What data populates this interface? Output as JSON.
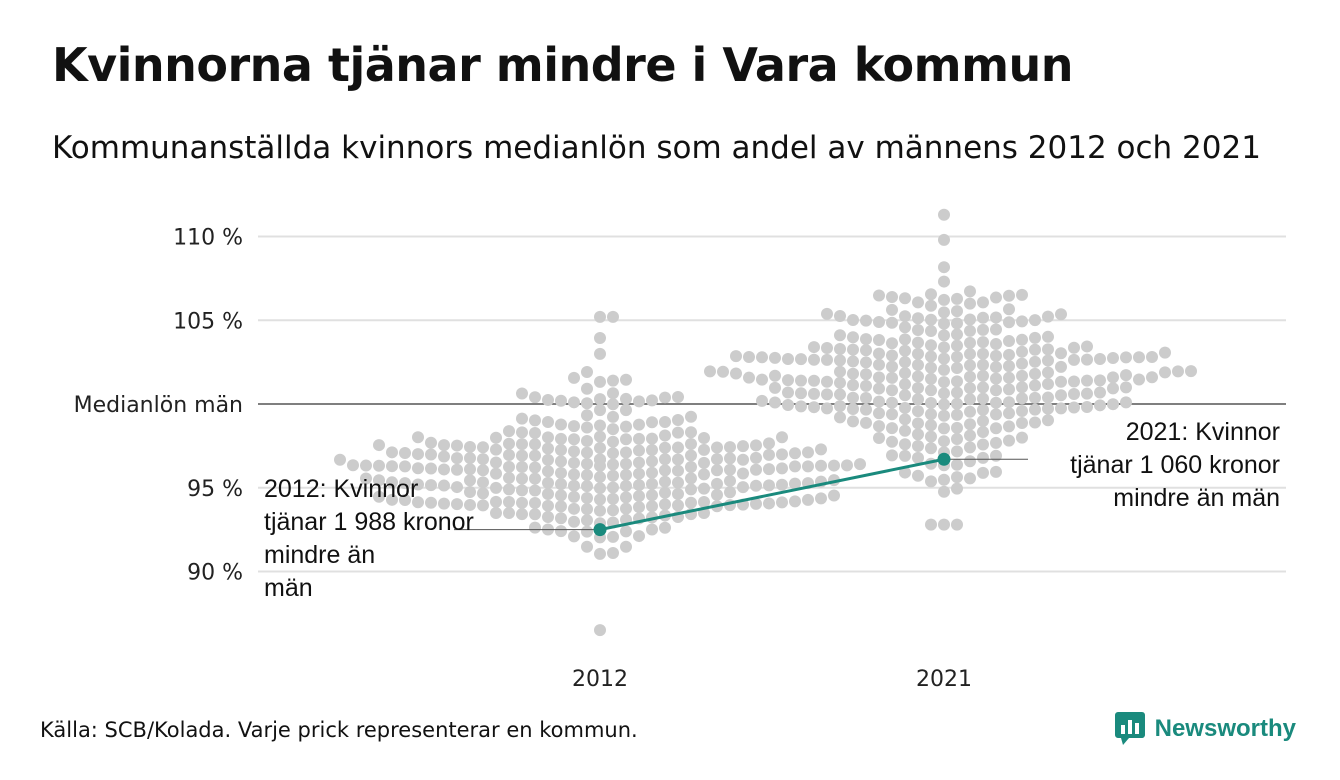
{
  "header": {
    "title": "Kvinnorna tjänar mindre i Vara kommun",
    "subtitle": "Kommunanställda kvinnors medianlön som andel av männens 2012 och 2021"
  },
  "footer": {
    "source": "Källa: SCB/Kolada. Varje prick representerar en kommun.",
    "brand": "Newsworthy",
    "brand_icon": "newsworthy-logo-icon"
  },
  "colors": {
    "dots": "#cccccc",
    "highlight": "#1a8a7d",
    "grid": "#e0e0e0",
    "reference": "#333333"
  },
  "chart_data": {
    "type": "scatter",
    "title": "Kvinnorna tjänar mindre i Vara kommun",
    "ylim": [
      86,
      111.5
    ],
    "yticks": [
      {
        "value": 110,
        "label": "110 %"
      },
      {
        "value": 105,
        "label": "105 %"
      },
      {
        "value": 100,
        "label": "Medianlön män"
      },
      {
        "value": 95,
        "label": "95 %"
      },
      {
        "value": 90,
        "label": "90 %"
      }
    ],
    "categories": [
      "2012",
      "2021"
    ],
    "distribution": {
      "2012": {
        "count": 290,
        "center": 96.0,
        "spread": 2.4,
        "min": 86.5,
        "max": 105.2
      },
      "2021": {
        "count": 290,
        "center": 101.8,
        "spread": 2.6,
        "min": 92.8,
        "max": 111.3
      }
    },
    "highlight_series": {
      "name": "Vara kommun",
      "points": [
        {
          "x": "2012",
          "y": 92.5,
          "label": "2012: Kvinnor tjänar 1 988 kronor mindre än män"
        },
        {
          "x": "2021",
          "y": 96.7,
          "label": "2021: Kvinnor tjänar 1 060 kronor mindre än män"
        }
      ]
    },
    "reference_line": {
      "value": 100,
      "label": "Medianlön män"
    },
    "grid": true
  }
}
